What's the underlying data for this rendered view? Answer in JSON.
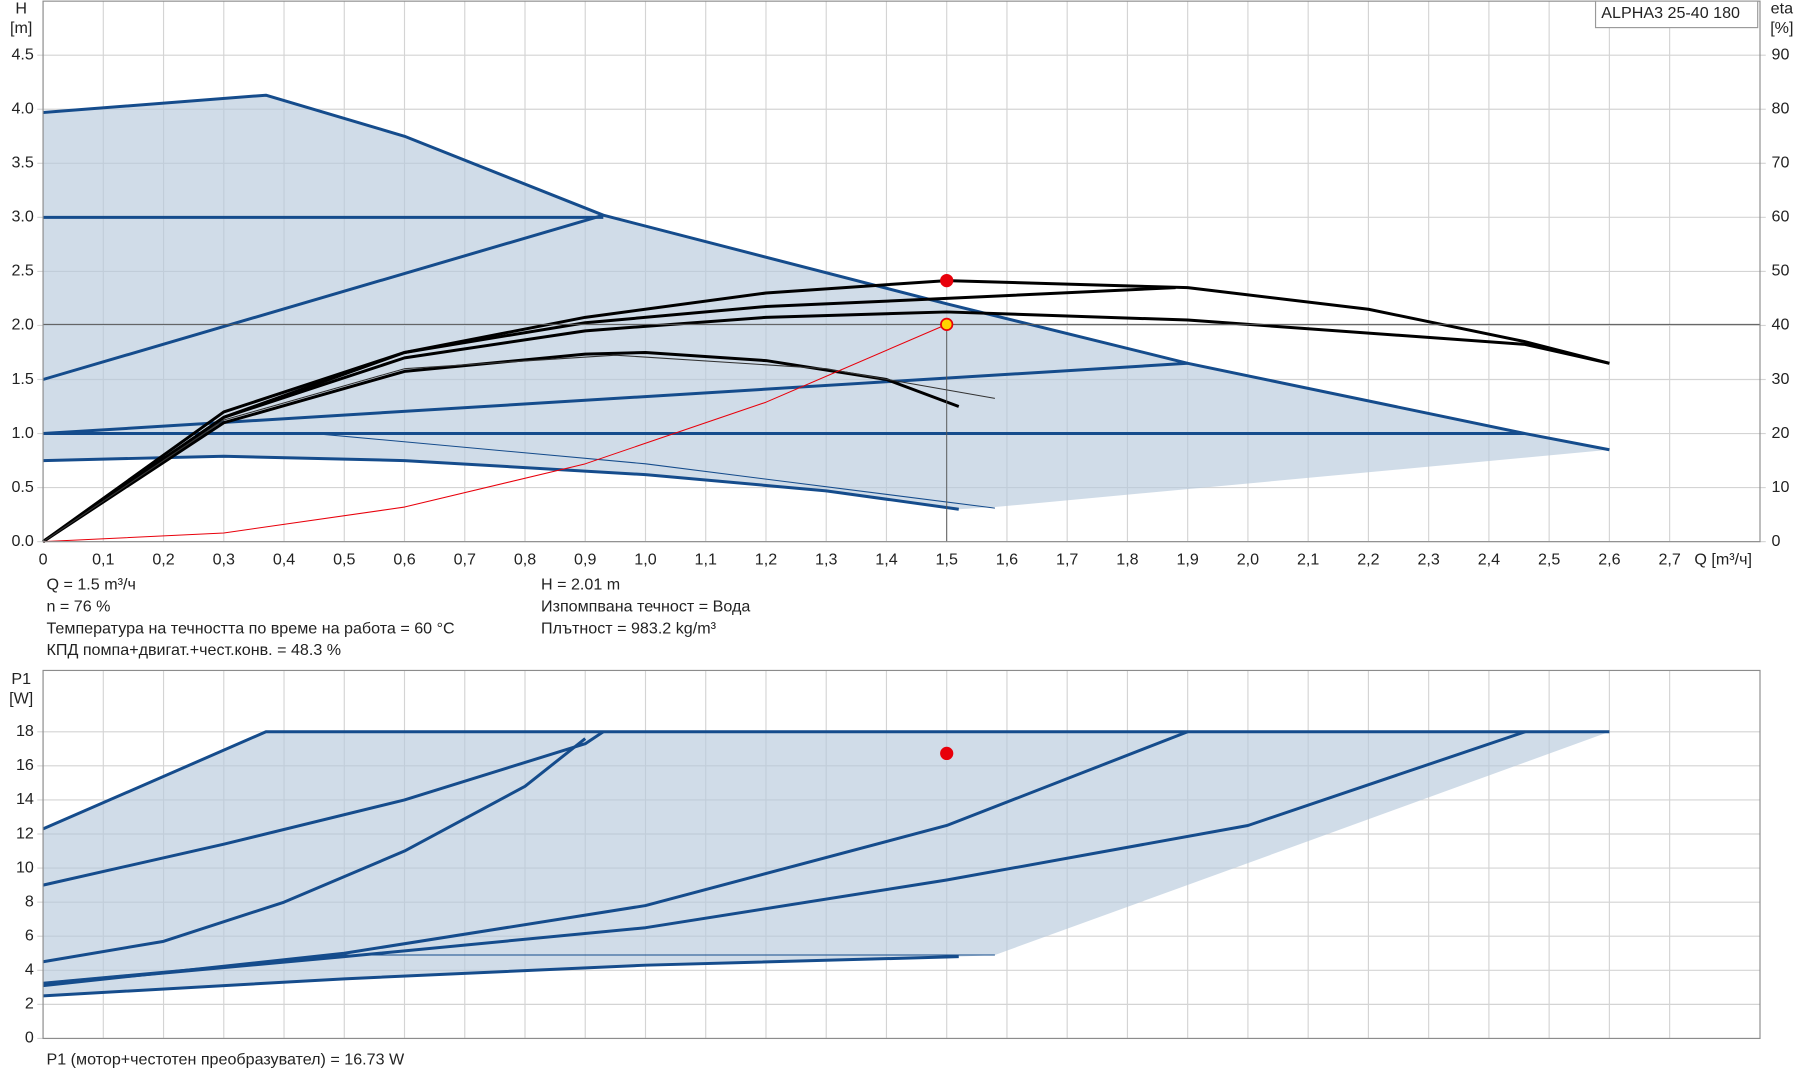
{
  "chart_data": [
    {
      "type": "line",
      "title": "ALPHA3 25-40 180",
      "y_label": [
        "H",
        "[m]"
      ],
      "y2_label": [
        "eta",
        "[%]"
      ],
      "x_label": "Q [m³/ч]",
      "annotations": [
        {
          "column": "left",
          "text": "Q = 1.5 m³/ч"
        },
        {
          "column": "left",
          "text": "n = 76 %"
        },
        {
          "column": "left",
          "text": "Температура на течността по време на работа = 60 °C"
        },
        {
          "column": "left",
          "text": "КПД помпа+двигат.+чест.конв. = 48.3 %"
        },
        {
          "column": "right",
          "text": "H = 2.01 m"
        },
        {
          "column": "right",
          "text": "Изпомпвана течност = Вода"
        },
        {
          "column": "right",
          "text": "Плътност = 983.2 kg/m³"
        }
      ],
      "xlim": [
        0,
        2.85
      ],
      "xticks": [
        0,
        {
          "value": 0.1,
          "label": "0,1"
        },
        {
          "value": 0.2,
          "label": "0,2"
        },
        {
          "value": 0.3,
          "label": "0,3"
        },
        {
          "value": 0.4,
          "label": "0,4"
        },
        {
          "value": 0.5,
          "label": "0,5"
        },
        {
          "value": 0.6,
          "label": "0,6"
        },
        {
          "value": 0.7,
          "label": "0,7"
        },
        {
          "value": 0.8,
          "label": "0,8"
        },
        {
          "value": 0.9,
          "label": "0,9"
        },
        {
          "value": 1.0,
          "label": "1,0"
        },
        {
          "value": 1.1,
          "label": "1,1"
        },
        {
          "value": 1.2,
          "label": "1,2"
        },
        {
          "value": 1.3,
          "label": "1,3"
        },
        {
          "value": 1.4,
          "label": "1,4"
        },
        {
          "value": 1.5,
          "label": "1,5"
        },
        {
          "value": 1.6,
          "label": "1,6"
        },
        {
          "value": 1.7,
          "label": "1,7"
        },
        {
          "value": 1.8,
          "label": "1,8"
        },
        {
          "value": 1.9,
          "label": "1,9"
        },
        {
          "value": 2.0,
          "label": "2,0"
        },
        {
          "value": 2.1,
          "label": "2,1"
        },
        {
          "value": 2.2,
          "label": "2,2"
        },
        {
          "value": 2.3,
          "label": "2,3"
        },
        {
          "value": 2.4,
          "label": "2,4"
        },
        {
          "value": 2.5,
          "label": "2,5"
        },
        {
          "value": 2.6,
          "label": "2,6"
        },
        {
          "value": 2.7,
          "label": "2,7"
        }
      ],
      "ylim": [
        0,
        5
      ],
      "yticks": [
        {
          "value": 0,
          "label": "0.0"
        },
        0.5,
        {
          "value": 1,
          "label": "1.0"
        },
        1.5,
        {
          "value": 2,
          "label": "2.0"
        },
        2.5,
        {
          "value": 3,
          "label": "3.0"
        },
        3.5,
        {
          "value": 4,
          "label": "4.0"
        },
        4.5
      ],
      "y2lim": [
        0,
        100
      ],
      "y2ticks": [
        0,
        10,
        20,
        30,
        40,
        50,
        60,
        70,
        80,
        90
      ],
      "grid": true,
      "series": [
        {
          "kind": "area",
          "color": "#b7c9dc",
          "x": [
            0,
            0.37,
            0.6,
            0.93,
            1.5,
            1.9,
            2.46,
            2.6,
            1.58,
            1.52,
            1.3,
            1.0,
            0.6,
            0.3,
            0
          ],
          "values": [
            3.97,
            4.13,
            3.75,
            3.02,
            2.2,
            1.65,
            1.0,
            0.85,
            0.32,
            0.3,
            0.47,
            0.62,
            0.75,
            0.79,
            0.75
          ]
        },
        {
          "kind": "line",
          "color": "#154c8c",
          "x": [
            0,
            0.37,
            0.6,
            0.93,
            1.5,
            1.9,
            2.46,
            2.6
          ],
          "values": [
            3.97,
            4.13,
            3.75,
            3.02,
            2.2,
            1.65,
            1.0,
            0.85
          ]
        },
        {
          "kind": "line",
          "color": "#154c8c",
          "x": [
            0,
            0.93
          ],
          "values": [
            3.0,
            3.0
          ]
        },
        {
          "kind": "line",
          "color": "#154c8c",
          "x": [
            0,
            0.93
          ],
          "values": [
            1.5,
            3.02
          ]
        },
        {
          "kind": "line",
          "color": "#154c8c",
          "x": [
            0,
            1.9
          ],
          "values": [
            1.0,
            1.65
          ]
        },
        {
          "kind": "line",
          "color": "#154c8c",
          "x": [
            0,
            2.46
          ],
          "values": [
            1.0,
            1.0
          ]
        },
        {
          "kind": "line",
          "color": "#154c8c",
          "x": [
            0,
            0.3,
            0.6,
            1.0,
            1.3,
            1.52
          ],
          "values": [
            0.75,
            0.79,
            0.75,
            0.62,
            0.47,
            0.3
          ]
        },
        {
          "kind": "line",
          "style": "thin",
          "color": "#154c8c",
          "x": [
            0.45,
            1.0,
            1.58
          ],
          "values": [
            1.0,
            0.72,
            0.31
          ]
        },
        {
          "kind": "line",
          "axis": "y2",
          "color": "#000000",
          "x": [
            0,
            0.3,
            0.6,
            0.9,
            1.2,
            1.5,
            1.9,
            2.2,
            2.46,
            2.6
          ],
          "values": [
            0,
            23,
            35,
            41.5,
            46,
            48.3,
            47,
            43,
            37,
            33
          ]
        },
        {
          "kind": "line",
          "axis": "y2",
          "color": "#000000",
          "x": [
            0,
            0.3,
            0.6,
            0.9,
            1.2,
            1.5,
            1.88
          ],
          "values": [
            0,
            24,
            35,
            40.5,
            43.5,
            45,
            47
          ]
        },
        {
          "kind": "line",
          "axis": "y2",
          "color": "#000000",
          "x": [
            0,
            0.3,
            0.6,
            0.9,
            1.2,
            1.5,
            1.9,
            2.46,
            2.6
          ],
          "values": [
            0,
            23,
            34,
            39,
            41.5,
            42.5,
            41,
            36.5,
            33
          ]
        },
        {
          "kind": "line",
          "axis": "y2",
          "color": "#000000",
          "x": [
            0,
            0.3,
            0.6,
            0.9,
            1.0,
            1.2,
            1.4,
            1.52
          ],
          "values": [
            0,
            22,
            31.5,
            34.7,
            35,
            33.5,
            30,
            25
          ]
        },
        {
          "kind": "line",
          "axis": "y2",
          "style": "thin",
          "color": "#333333",
          "x": [
            0,
            0.3,
            0.6,
            0.95,
            1.3,
            1.58
          ],
          "values": [
            0,
            22.5,
            32,
            34.5,
            32,
            26.5
          ]
        },
        {
          "kind": "line",
          "style": "thin",
          "color": "#e8000b",
          "x": [
            0,
            0.3,
            0.6,
            0.9,
            1.2,
            1.5
          ],
          "values": [
            0,
            0.08,
            0.32,
            0.72,
            1.29,
            2.01
          ]
        },
        {
          "kind": "marker",
          "crosshair": true,
          "color": "#e8000b",
          "fill": "#ffd400",
          "x": [
            1.5
          ],
          "values": [
            2.01
          ]
        },
        {
          "kind": "marker",
          "axis": "y2",
          "color": "#e8000b",
          "fill": "#e8000b",
          "x": [
            1.5
          ],
          "values": [
            48.3
          ]
        }
      ]
    },
    {
      "type": "line",
      "y_label": [
        "P1",
        "[W]"
      ],
      "annotations": [
        {
          "column": "left",
          "text": "P1 (мотор+честотен преобразувател) = 16.73 W"
        }
      ],
      "xlim": [
        0,
        2.85
      ],
      "xticks": [
        0,
        0.1,
        0.2,
        0.3,
        0.4,
        0.5,
        0.6,
        0.7,
        0.8,
        0.9,
        1.0,
        1.1,
        1.2,
        1.3,
        1.4,
        1.5,
        1.6,
        1.7,
        1.8,
        1.9,
        2.0,
        2.1,
        2.2,
        2.3,
        2.4,
        2.5,
        2.6,
        2.7
      ],
      "ylim": [
        0,
        21.6
      ],
      "yticks": [
        0,
        2,
        4,
        6,
        8,
        10,
        12,
        14,
        16,
        18
      ],
      "grid": true,
      "series": [
        {
          "kind": "area",
          "color": "#b7c9dc",
          "x": [
            0,
            0.37,
            2.6,
            1.58,
            1.52,
            1.0,
            0.5,
            0
          ],
          "values": [
            12.3,
            18,
            18,
            4.9,
            4.8,
            4.3,
            3.5,
            2.5
          ]
        },
        {
          "kind": "line",
          "color": "#154c8c",
          "x": [
            0,
            0.37,
            2.6
          ],
          "values": [
            12.3,
            18,
            18
          ]
        },
        {
          "kind": "line",
          "color": "#154c8c",
          "x": [
            0,
            0.3,
            0.6,
            0.9,
            0.93
          ],
          "values": [
            9,
            11.4,
            14,
            17.3,
            18
          ]
        },
        {
          "kind": "line",
          "color": "#154c8c",
          "x": [
            0,
            0.2,
            0.4,
            0.6,
            0.8,
            0.9
          ],
          "values": [
            4.5,
            5.7,
            8,
            11,
            14.8,
            17.6
          ]
        },
        {
          "kind": "line",
          "color": "#154c8c",
          "x": [
            0,
            0.5,
            1.0,
            1.5,
            1.9
          ],
          "values": [
            3.1,
            5,
            7.8,
            12.5,
            18
          ]
        },
        {
          "kind": "line",
          "color": "#154c8c",
          "x": [
            0,
            0.5,
            1.0,
            1.5,
            2.0,
            2.46
          ],
          "values": [
            3.2,
            4.8,
            6.5,
            9.3,
            12.5,
            18
          ]
        },
        {
          "kind": "line",
          "color": "#154c8c",
          "x": [
            0,
            0.5,
            1.0,
            1.52
          ],
          "values": [
            2.5,
            3.5,
            4.3,
            4.8
          ]
        },
        {
          "kind": "line",
          "style": "thin",
          "color": "#154c8c",
          "x": [
            0,
            0.5,
            1.58
          ],
          "values": [
            3.3,
            4.9,
            4.9
          ]
        },
        {
          "kind": "marker",
          "color": "#e8000b",
          "fill": "#e8000b",
          "x": [
            1.5
          ],
          "values": [
            16.73
          ]
        }
      ]
    }
  ]
}
